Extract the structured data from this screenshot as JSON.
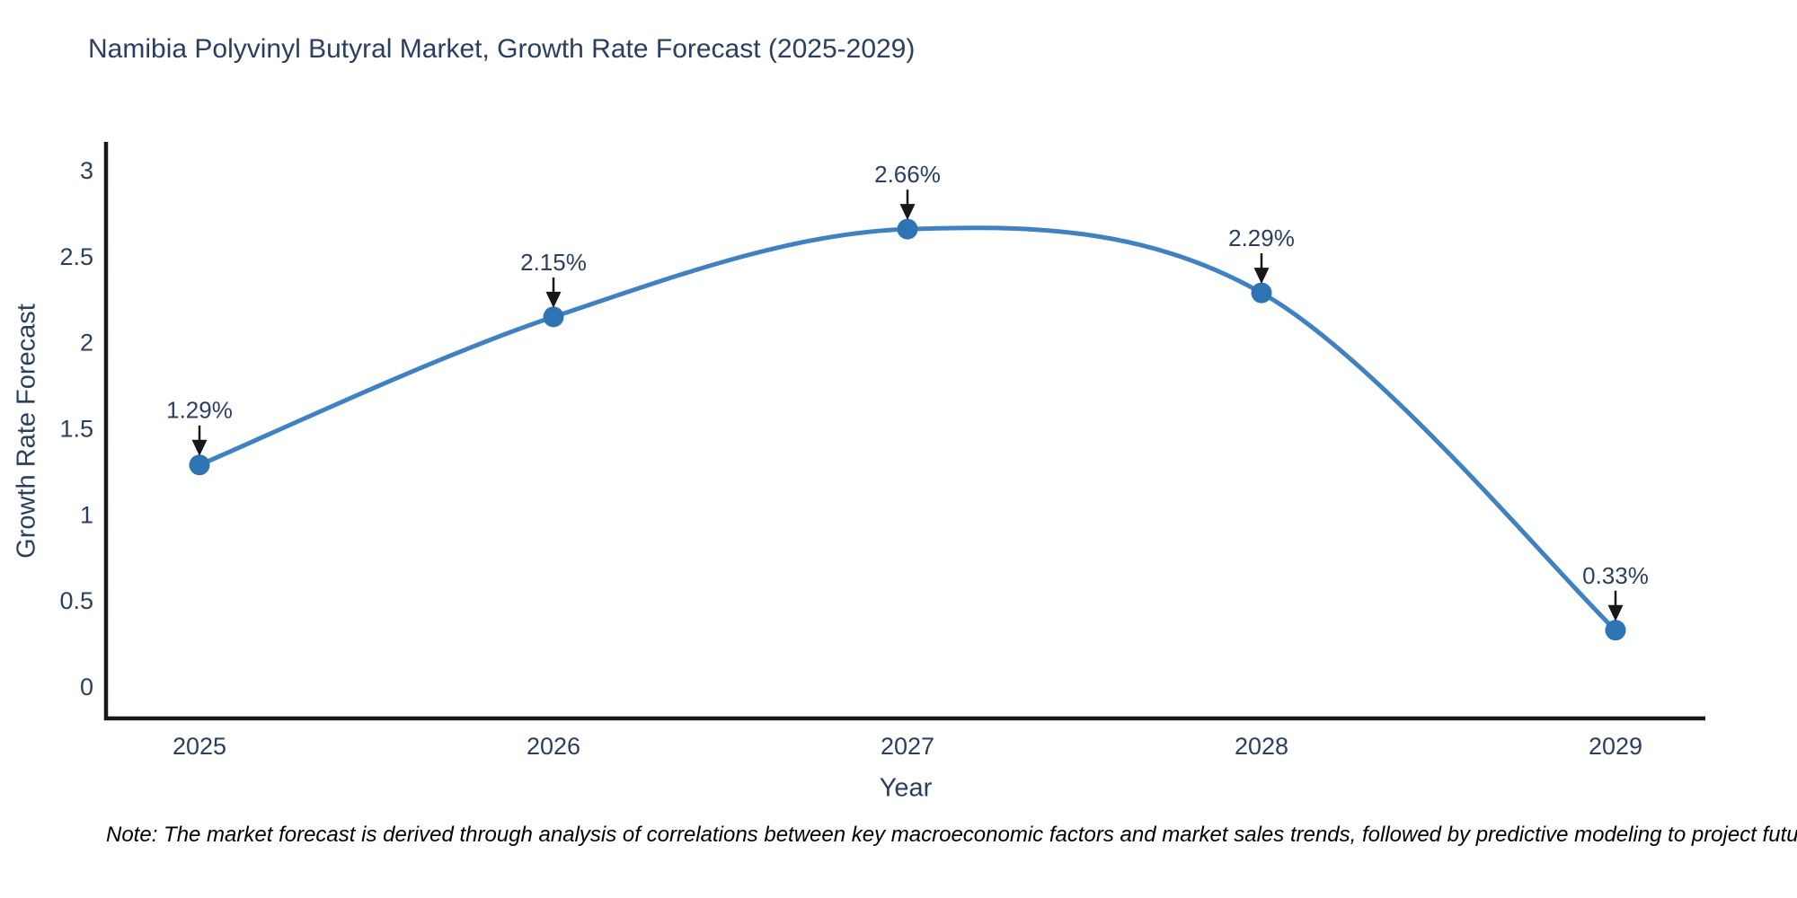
{
  "note": "Note: The market forecast is derived through analysis of correlations between key macroeconomic factors and market sales trends, followed by predictive modeling to project future sales",
  "chart_data": {
    "type": "line",
    "title": "Namibia Polyvinyl Butyral Market, Growth Rate Forecast (2025-2029)",
    "x": [
      "2025",
      "2026",
      "2027",
      "2028",
      "2029"
    ],
    "series": [
      {
        "name": "Growth Rate Forecast",
        "values": [
          1.29,
          2.15,
          2.66,
          2.29,
          0.33
        ]
      }
    ],
    "point_labels": [
      "1.29%",
      "2.15%",
      "2.66%",
      "2.29%",
      "0.33%"
    ],
    "xlabel": "Year",
    "ylabel": "Growth Rate Forecast",
    "ylim": [
      0,
      3
    ],
    "yticks": [
      "0",
      "0.5",
      "1",
      "1.5",
      "2",
      "2.5",
      "3"
    ],
    "ytick_values": [
      0,
      0.5,
      1,
      1.5,
      2,
      2.5,
      3
    ],
    "line_shape": "spline",
    "grid": false,
    "legend": "none",
    "colors": {
      "line": "#3f81c1",
      "marker": "#2e74b2",
      "text": "#2a3f5f",
      "axis": "#16181c",
      "arrow": "#16181c",
      "annotation_text": "#2a3f5f",
      "background": "#ffffff"
    }
  }
}
